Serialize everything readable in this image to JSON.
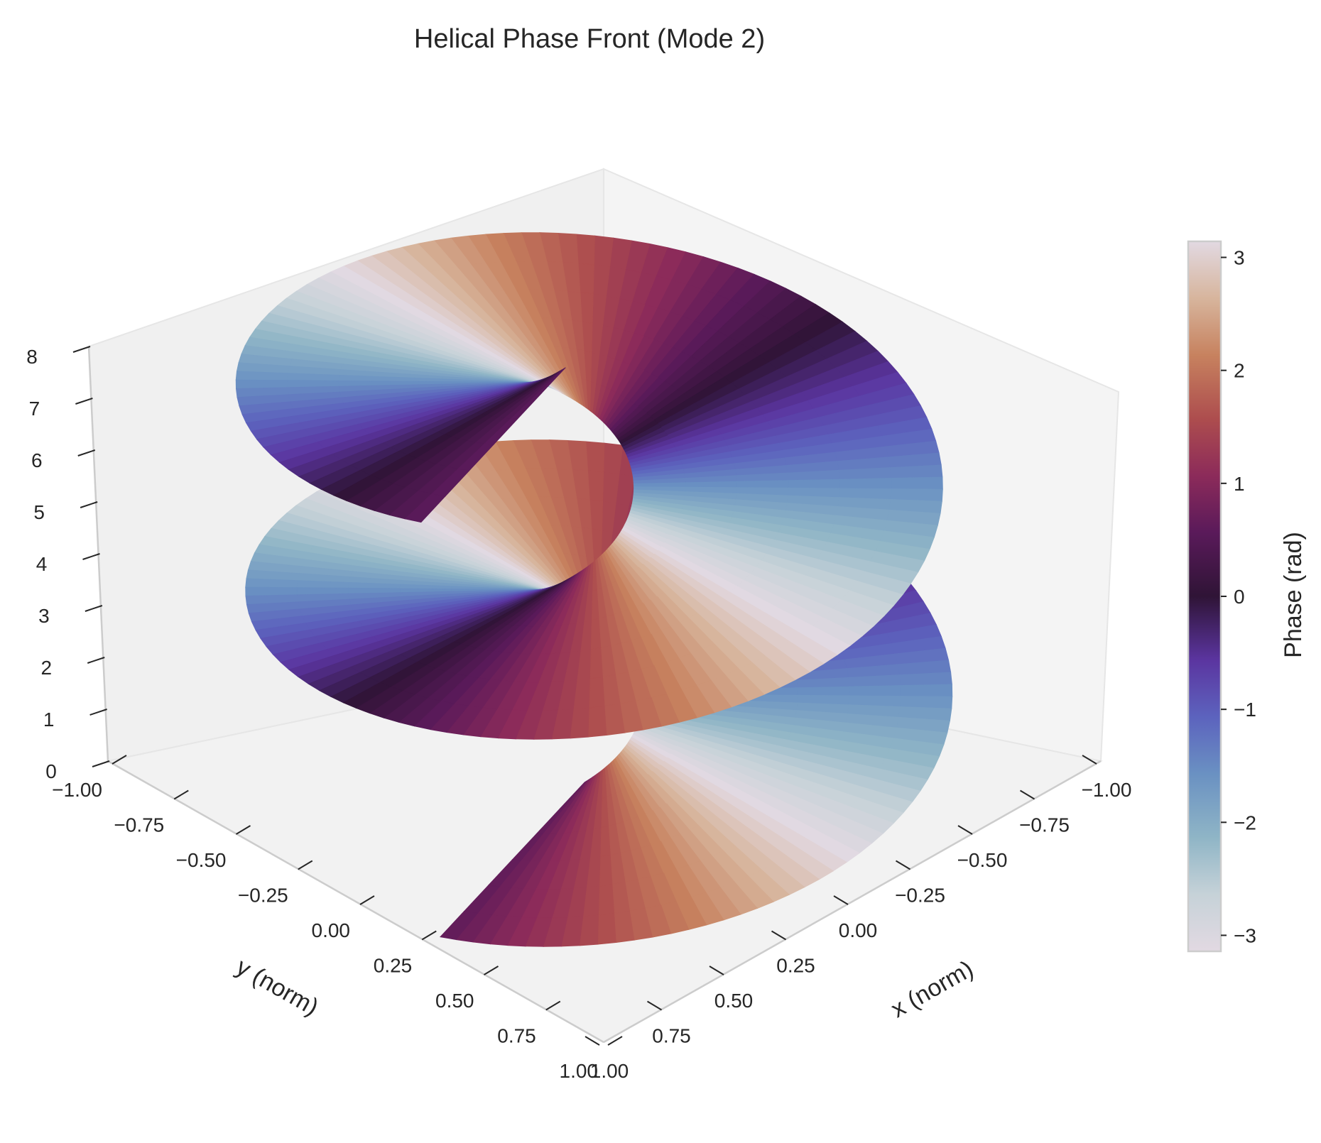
{
  "chart_data": {
    "type": "surface3d",
    "title": "Helical Phase Front (Mode 2)",
    "xlabel": "x (norm)",
    "ylabel": "y (norm)",
    "zlabel": "",
    "xlim": [
      -1.0,
      1.0
    ],
    "ylim": [
      -1.0,
      1.0
    ],
    "zlim": [
      0,
      8
    ],
    "x_ticks": [
      "−1.00",
      "−0.75",
      "−0.50",
      "−0.25",
      "0.00",
      "0.25",
      "0.50",
      "0.75",
      "1.00"
    ],
    "y_ticks": [
      "−1.00",
      "−0.75",
      "−0.50",
      "−0.25",
      "0.00",
      "0.25",
      "0.50",
      "0.75",
      "1.00"
    ],
    "z_ticks": [
      "0",
      "1",
      "2",
      "3",
      "4",
      "5",
      "6",
      "7",
      "8"
    ],
    "surface": {
      "description_function": "z = 2 * theta_unwrapped / (2*pi) * 2, r in [0.12, 1.0], theta in [0, 4*pi]",
      "mode": 2,
      "r_range": [
        0.12,
        1.0
      ],
      "theta_range_turns": 2,
      "z_range": [
        0,
        8
      ],
      "color_value": "wrapped phase in [-pi, pi]"
    },
    "colorbar": {
      "label": "Phase (rad)",
      "range": [
        -3.14159,
        3.14159
      ],
      "ticks": [
        "3",
        "2",
        "1",
        "0",
        "−1",
        "−2",
        "−3"
      ],
      "tick_values": [
        3,
        2,
        1,
        0,
        -1,
        -2,
        -3
      ],
      "colormap": "twilight_shifted"
    },
    "view": {
      "elev": 25,
      "azim": 45
    },
    "grid": false,
    "pane_colors": {
      "left": "#f0f0f0",
      "right": "#f4f4f4",
      "floor": "#f2f2f2"
    }
  }
}
